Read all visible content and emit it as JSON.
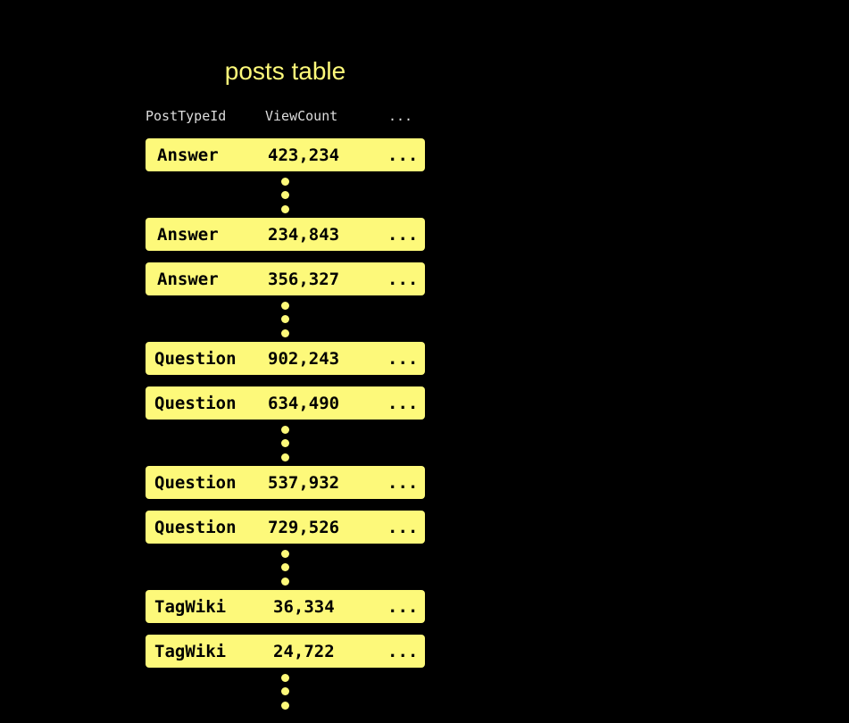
{
  "title": "posts table",
  "columns": [
    "PostTypeId",
    "ViewCount",
    "..."
  ],
  "rows": [
    {
      "type": "Answer",
      "views": "423,234",
      "more": "...",
      "gap_after": true
    },
    {
      "type": "Answer",
      "views": "234,843",
      "more": "...",
      "gap_after": false
    },
    {
      "type": "Answer",
      "views": "356,327",
      "more": "...",
      "gap_after": true
    },
    {
      "type": "Question",
      "views": "902,243",
      "more": "...",
      "gap_after": false
    },
    {
      "type": "Question",
      "views": "634,490",
      "more": "...",
      "gap_after": true
    },
    {
      "type": "Question",
      "views": "537,932",
      "more": "...",
      "gap_after": false
    },
    {
      "type": "Question",
      "views": "729,526",
      "more": "...",
      "gap_after": true
    },
    {
      "type": "TagWiki",
      "views": "36,334",
      "more": "...",
      "gap_after": false
    },
    {
      "type": "TagWiki",
      "views": "24,722",
      "more": "...",
      "gap_after": true
    }
  ],
  "colors": {
    "accent": "#fdf97a",
    "background": "#000000"
  }
}
